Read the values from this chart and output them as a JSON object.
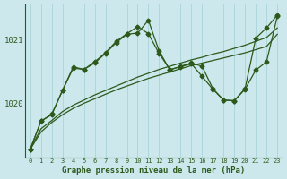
{
  "bg_color": "#cce8ed",
  "line_color": "#2d5a1b",
  "grid_color": "#a8d4d8",
  "xlabel": "Graphe pression niveau de la mer (hPa)",
  "ylim": [
    1019.15,
    1021.55
  ],
  "xlim": [
    -0.5,
    23.5
  ],
  "yticks": [
    1020,
    1021
  ],
  "line1_x": [
    0,
    1,
    2,
    3,
    4,
    5,
    6,
    7,
    8,
    9,
    10,
    11,
    12,
    13,
    14,
    15,
    16,
    17,
    18,
    19,
    20,
    21,
    22,
    23
  ],
  "line1_y": [
    1019.28,
    1019.55,
    1019.7,
    1019.82,
    1019.92,
    1020.0,
    1020.07,
    1020.14,
    1020.21,
    1020.27,
    1020.33,
    1020.39,
    1020.44,
    1020.49,
    1020.54,
    1020.59,
    1020.63,
    1020.67,
    1020.71,
    1020.75,
    1020.79,
    1020.84,
    1020.89,
    1021.08
  ],
  "line2_x": [
    0,
    1,
    2,
    3,
    4,
    5,
    6,
    7,
    8,
    9,
    10,
    11,
    12,
    13,
    14,
    15,
    16,
    17,
    18,
    19,
    20,
    21,
    22,
    23
  ],
  "line2_y": [
    1019.28,
    1019.6,
    1019.73,
    1019.87,
    1019.97,
    1020.05,
    1020.13,
    1020.2,
    1020.27,
    1020.34,
    1020.41,
    1020.47,
    1020.53,
    1020.58,
    1020.63,
    1020.68,
    1020.72,
    1020.77,
    1020.81,
    1020.86,
    1020.91,
    1020.97,
    1021.03,
    1021.18
  ],
  "line3_x": [
    0,
    1,
    2,
    3,
    4,
    5,
    6,
    7,
    8,
    9,
    10,
    11,
    12,
    13,
    14,
    15,
    16,
    17,
    18,
    19,
    20,
    21,
    22,
    23
  ],
  "line3_y": [
    1019.28,
    1019.72,
    1019.82,
    1020.2,
    1020.55,
    1020.53,
    1020.63,
    1020.78,
    1020.95,
    1021.08,
    1021.1,
    1021.3,
    1020.82,
    1020.52,
    1020.58,
    1020.63,
    1020.58,
    1020.23,
    1020.05,
    1020.04,
    1020.23,
    1021.02,
    1021.18,
    1021.38
  ],
  "line4_x": [
    0,
    1,
    2,
    3,
    4,
    5,
    6,
    7,
    8,
    9,
    10,
    11,
    12,
    13,
    14,
    15,
    16,
    17,
    18,
    19,
    20,
    21,
    22,
    23
  ],
  "line4_y": [
    1019.28,
    1019.72,
    1019.83,
    1020.2,
    1020.57,
    1020.53,
    1020.65,
    1020.79,
    1020.97,
    1021.09,
    1021.2,
    1021.09,
    1020.78,
    1020.53,
    1020.57,
    1020.62,
    1020.42,
    1020.22,
    1020.05,
    1020.04,
    1020.22,
    1020.52,
    1020.65,
    1021.36
  ]
}
